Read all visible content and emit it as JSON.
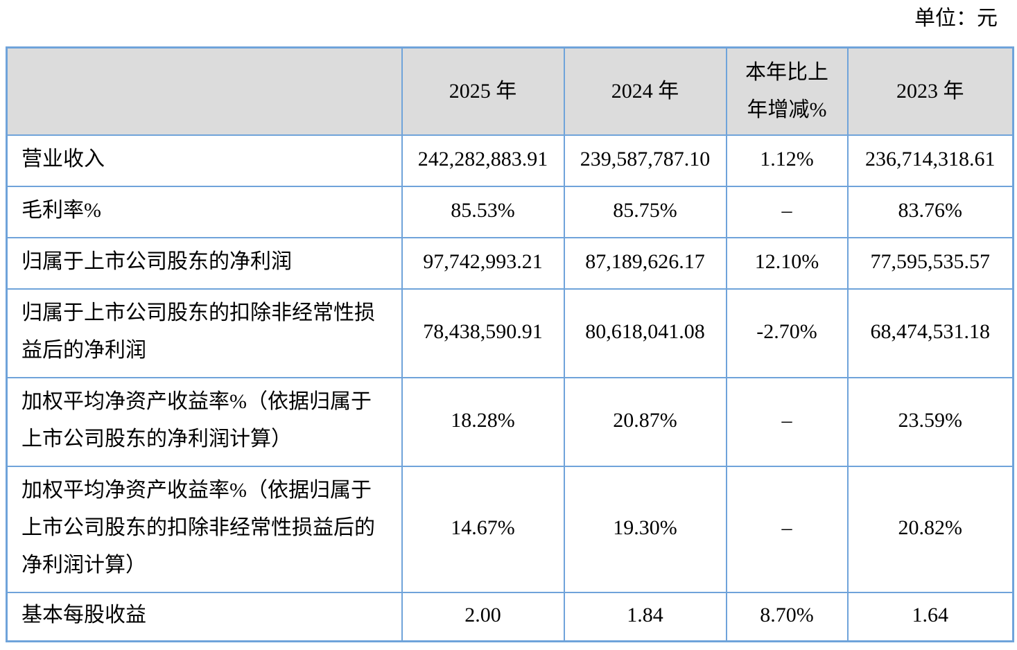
{
  "unit_label": "单位：元",
  "colors": {
    "border": "#6fa3da",
    "header_bg": "#dcdcdc",
    "text": "#000000",
    "page_bg": "#ffffff"
  },
  "table": {
    "header": {
      "corner": "",
      "columns": [
        "2025 年",
        "2024 年",
        "本年比上\n年增减%",
        "2023 年"
      ]
    },
    "rows": [
      {
        "label": "营业收入",
        "values": [
          "242,282,883.91",
          "239,587,787.10",
          "1.12%",
          "236,714,318.61"
        ]
      },
      {
        "label": "毛利率%",
        "values": [
          "85.53%",
          "85.75%",
          "–",
          "83.76%"
        ]
      },
      {
        "label": "归属于上市公司股东的净利润",
        "values": [
          "97,742,993.21",
          "87,189,626.17",
          "12.10%",
          "77,595,535.57"
        ]
      },
      {
        "label": "归属于上市公司股东的扣除非经常性损益后的净利润",
        "values": [
          "78,438,590.91",
          "80,618,041.08",
          "-2.70%",
          "68,474,531.18"
        ]
      },
      {
        "label": "加权平均净资产收益率%（依据归属于上市公司股东的净利润计算）",
        "values": [
          "18.28%",
          "20.87%",
          "–",
          "23.59%"
        ]
      },
      {
        "label": "加权平均净资产收益率%（依据归属于上市公司股东的扣除非经常性损益后的净利润计算）",
        "values": [
          "14.67%",
          "19.30%",
          "–",
          "20.82%"
        ]
      },
      {
        "label": "基本每股收益",
        "values": [
          "2.00",
          "1.84",
          "8.70%",
          "1.64"
        ]
      }
    ]
  }
}
